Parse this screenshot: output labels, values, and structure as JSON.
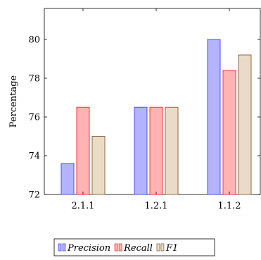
{
  "chart_data": {
    "type": "bar",
    "categories": [
      "2.1.1",
      "1.2.1",
      "1.1.2"
    ],
    "series": [
      {
        "name": "Precision",
        "values": [
          73.6,
          76.5,
          80.0
        ],
        "fill": "#b3b3ff",
        "stroke": "#4d4dff"
      },
      {
        "name": "Recall",
        "values": [
          76.5,
          76.5,
          78.4
        ],
        "fill": "#ffb3b3",
        "stroke": "#ff3333"
      },
      {
        "name": "F1",
        "values": [
          75.0,
          76.5,
          79.2
        ],
        "fill": "#eadbc6",
        "stroke": "#8b6b4a"
      }
    ],
    "yticks": [
      72,
      74,
      76,
      78,
      80
    ],
    "ylim": [
      72,
      81.6
    ],
    "ylabel": "Percentage",
    "xlabel": "",
    "title": "",
    "grid": false,
    "legend_position": "bottom-center"
  }
}
